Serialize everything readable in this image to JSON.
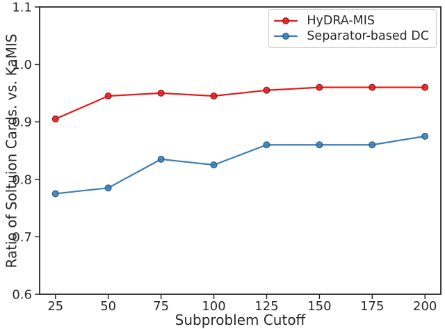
{
  "figure": {
    "background": "#ffffff",
    "axis_color": "#262626",
    "text_color": "#262626"
  },
  "chart_data": {
    "type": "line",
    "x": [
      25,
      50,
      75,
      100,
      125,
      150,
      175,
      200
    ],
    "series": [
      {
        "name": "HyDRA-MIS",
        "color": "#e41a1c",
        "marker": "circle",
        "values": [
          0.905,
          0.945,
          0.95,
          0.945,
          0.955,
          0.96,
          0.96,
          0.96
        ]
      },
      {
        "name": "Separator-based DC",
        "color": "#377eb8",
        "marker": "circle",
        "values": [
          0.775,
          0.785,
          0.835,
          0.825,
          0.86,
          0.86,
          0.86,
          0.875
        ]
      }
    ],
    "title": "",
    "xlabel": "Subproblem Cutoff",
    "ylabel": "Ratio of Soltuion Cards. vs. KaMIS",
    "xticks": [
      25,
      50,
      75,
      100,
      125,
      150,
      175,
      200
    ],
    "yticks": [
      0.6,
      0.7,
      0.8,
      0.9,
      1.0,
      1.1
    ],
    "xlim": [
      17.5,
      207.5
    ],
    "ylim": [
      0.6,
      1.1
    ],
    "grid": false,
    "legend_position": "upper right"
  }
}
